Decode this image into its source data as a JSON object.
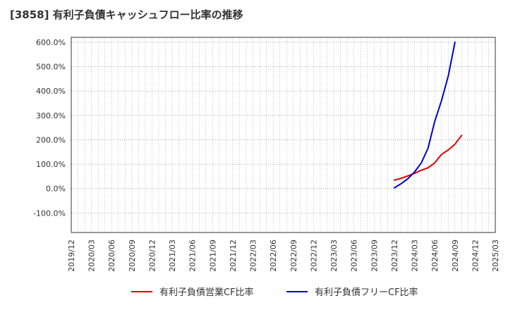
{
  "title": "[3858]  有利子負債キャッシュフロー比率の推移",
  "chart_data": {
    "type": "line",
    "title": "[3858]  有利子負債キャッシュフロー比率の推移",
    "xlabel": "",
    "ylabel": "",
    "ylim": [
      -180,
      620
    ],
    "yticks": [
      -100,
      0,
      100,
      200,
      300,
      400,
      500,
      600
    ],
    "ytick_labels": [
      "-100.0%",
      "0.0%",
      "100.0%",
      "200.0%",
      "300.0%",
      "400.0%",
      "500.0%",
      "600.0%"
    ],
    "x_tick_labels": [
      "2019/12",
      "2020/03",
      "2020/06",
      "2020/09",
      "2020/12",
      "2021/03",
      "2021/06",
      "2021/09",
      "2021/12",
      "2022/03",
      "2022/06",
      "2022/09",
      "2022/12",
      "2023/03",
      "2023/06",
      "2023/09",
      "2023/12",
      "2024/03",
      "2024/06",
      "2024/09",
      "2024/12",
      "2025/03"
    ],
    "x_month_range": [
      0,
      63
    ],
    "grid": true,
    "series": [
      {
        "name": "有利子負債営業CF比率",
        "color": "#dd0000",
        "points": [
          [
            48,
            35
          ],
          [
            49,
            42
          ],
          [
            50,
            52
          ],
          [
            51,
            63
          ],
          [
            52,
            75
          ],
          [
            53,
            85
          ],
          [
            54,
            105
          ],
          [
            55,
            140
          ],
          [
            56,
            158
          ],
          [
            57,
            182
          ],
          [
            58,
            218
          ]
        ]
      },
      {
        "name": "有利子負債フリーCF比率",
        "color": "#0000cc",
        "points": [
          [
            48,
            3
          ],
          [
            49,
            20
          ],
          [
            50,
            40
          ],
          [
            51,
            68
          ],
          [
            52,
            105
          ],
          [
            53,
            165
          ],
          [
            54,
            275
          ],
          [
            55,
            360
          ],
          [
            56,
            460
          ],
          [
            57,
            600
          ]
        ]
      }
    ]
  }
}
